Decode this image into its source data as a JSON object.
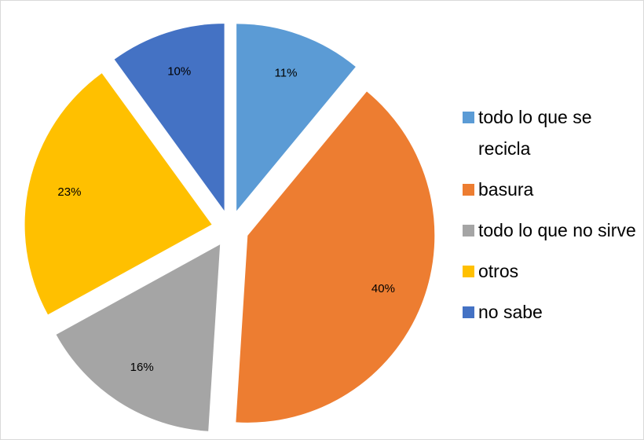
{
  "chart_data": {
    "type": "pie",
    "categories": [
      "todo lo que se recicla",
      "basura",
      "todo lo que no sirve",
      "otros",
      "no sabe"
    ],
    "values": [
      11,
      40,
      16,
      23,
      10
    ],
    "value_labels": [
      "11%",
      "40%",
      "16%",
      "23%",
      "10%"
    ],
    "colors": [
      "#5b9bd5",
      "#ed7d31",
      "#a5a5a5",
      "#ffc000",
      "#4472c4"
    ],
    "legend": "right"
  }
}
